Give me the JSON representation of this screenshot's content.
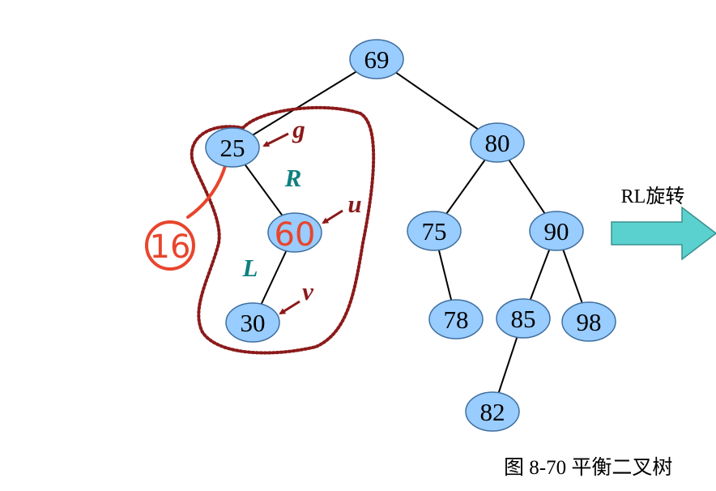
{
  "tree": {
    "nodes": [
      {
        "id": "n69",
        "label": "69"
      },
      {
        "id": "n25",
        "label": "25"
      },
      {
        "id": "n80",
        "label": "80"
      },
      {
        "id": "n60",
        "label": "60"
      },
      {
        "id": "n30",
        "label": "30"
      },
      {
        "id": "n75",
        "label": "75"
      },
      {
        "id": "n90",
        "label": "90"
      },
      {
        "id": "n78",
        "label": "78"
      },
      {
        "id": "n85",
        "label": "85"
      },
      {
        "id": "n98",
        "label": "98"
      },
      {
        "id": "n82",
        "label": "82"
      }
    ],
    "edges": [
      [
        "n69",
        "n25"
      ],
      [
        "n69",
        "n80"
      ],
      [
        "n25",
        "n60"
      ],
      [
        "n60",
        "n30"
      ],
      [
        "n80",
        "n75"
      ],
      [
        "n80",
        "n90"
      ],
      [
        "n75",
        "n78"
      ],
      [
        "n90",
        "n85"
      ],
      [
        "n90",
        "n98"
      ],
      [
        "n85",
        "n82"
      ]
    ]
  },
  "annotations": {
    "g": "g",
    "u": "u",
    "v": "v",
    "R": "R",
    "L": "L",
    "handwritten_inserted": "16",
    "handwritten_overwrite": "60"
  },
  "rotation_label": "RL旋转",
  "caption": "图 8-70    平衡二叉树",
  "colors": {
    "node_fill": "#99ccff",
    "node_stroke": "#3f6f9f",
    "edge": "#000000",
    "annotation_red": "#8b1a1a",
    "annotation_teal": "#0f7f7f",
    "handwriting": "#e8452c",
    "dotted_outline": "#8b1a1a",
    "arrow_fill": "#5ad1cf",
    "arrow_stroke": "#3a8f8f"
  }
}
